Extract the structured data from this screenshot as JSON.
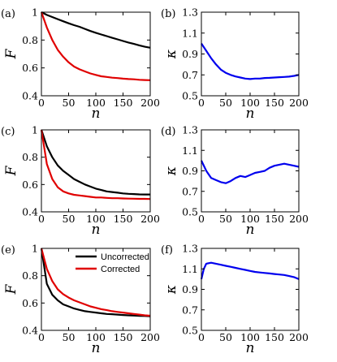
{
  "chart_data": [
    {
      "panel": "(a)",
      "type": "line",
      "xlabel": "n",
      "ylabel": "F",
      "xlim": [
        0,
        200
      ],
      "ylim": [
        0.4,
        1.0
      ],
      "xticks": [
        "0",
        "50",
        "100",
        "150",
        "200"
      ],
      "yticks": [
        "0.4",
        "0.6",
        "0.8",
        "1"
      ],
      "series": [
        {
          "color": "#000000",
          "x": [
            0,
            10,
            20,
            30,
            40,
            50,
            60,
            70,
            80,
            90,
            100,
            110,
            120,
            130,
            140,
            150,
            160,
            170,
            180,
            190,
            200
          ],
          "values": [
            1.0,
            0.98,
            0.965,
            0.95,
            0.935,
            0.92,
            0.907,
            0.895,
            0.88,
            0.865,
            0.852,
            0.84,
            0.828,
            0.816,
            0.805,
            0.793,
            0.782,
            0.772,
            0.762,
            0.752,
            0.745
          ]
        },
        {
          "color": "#e00000",
          "x": [
            0,
            10,
            20,
            30,
            40,
            50,
            60,
            70,
            80,
            90,
            100,
            110,
            120,
            130,
            140,
            150,
            160,
            170,
            180,
            190,
            200
          ],
          "values": [
            1.0,
            0.89,
            0.8,
            0.73,
            0.68,
            0.64,
            0.61,
            0.59,
            0.575,
            0.56,
            0.55,
            0.54,
            0.535,
            0.53,
            0.527,
            0.523,
            0.52,
            0.518,
            0.515,
            0.513,
            0.512
          ]
        }
      ]
    },
    {
      "panel": "(b)",
      "type": "line",
      "xlabel": "n",
      "ylabel": "κ",
      "xlim": [
        0,
        200
      ],
      "ylim": [
        0.5,
        1.3
      ],
      "xticks": [
        "0",
        "50",
        "100",
        "150",
        "200"
      ],
      "yticks": [
        "0.5",
        "0.7",
        "0.9",
        "1.1",
        "1.3"
      ],
      "series": [
        {
          "color": "#0000ee",
          "x": [
            0,
            10,
            20,
            30,
            40,
            50,
            60,
            70,
            80,
            90,
            100,
            110,
            120,
            130,
            140,
            150,
            160,
            170,
            180,
            190,
            200
          ],
          "values": [
            1.0,
            0.93,
            0.86,
            0.8,
            0.75,
            0.72,
            0.7,
            0.685,
            0.675,
            0.665,
            0.66,
            0.665,
            0.665,
            0.67,
            0.672,
            0.675,
            0.678,
            0.68,
            0.683,
            0.69,
            0.7
          ]
        }
      ]
    },
    {
      "panel": "(c)",
      "type": "line",
      "xlabel": "n",
      "ylabel": "F",
      "xlim": [
        0,
        200
      ],
      "ylim": [
        0.4,
        1.0
      ],
      "xticks": [
        "0",
        "50",
        "100",
        "150",
        "200"
      ],
      "yticks": [
        "0.4",
        "0.6",
        "0.8",
        "1"
      ],
      "series": [
        {
          "color": "#000000",
          "x": [
            0,
            10,
            20,
            30,
            40,
            50,
            60,
            70,
            80,
            90,
            100,
            110,
            120,
            130,
            140,
            150,
            160,
            170,
            180,
            190,
            200
          ],
          "values": [
            1.0,
            0.88,
            0.8,
            0.74,
            0.7,
            0.67,
            0.64,
            0.62,
            0.6,
            0.585,
            0.57,
            0.56,
            0.55,
            0.545,
            0.54,
            0.535,
            0.532,
            0.53,
            0.528,
            0.527,
            0.527
          ]
        },
        {
          "color": "#e00000",
          "x": [
            0,
            10,
            20,
            30,
            40,
            50,
            60,
            70,
            80,
            90,
            100,
            110,
            120,
            130,
            140,
            150,
            160,
            170,
            180,
            190,
            200
          ],
          "values": [
            1.0,
            0.75,
            0.64,
            0.58,
            0.55,
            0.535,
            0.525,
            0.52,
            0.515,
            0.51,
            0.505,
            0.505,
            0.502,
            0.5,
            0.5,
            0.498,
            0.497,
            0.496,
            0.495,
            0.495,
            0.494
          ]
        }
      ]
    },
    {
      "panel": "(d)",
      "type": "line",
      "xlabel": "n",
      "ylabel": "κ",
      "xlim": [
        0,
        200
      ],
      "ylim": [
        0.5,
        1.3
      ],
      "xticks": [
        "0",
        "50",
        "100",
        "150",
        "200"
      ],
      "yticks": [
        "0.5",
        "0.7",
        "0.9",
        "1.1",
        "1.3"
      ],
      "series": [
        {
          "color": "#0000ee",
          "x": [
            0,
            10,
            20,
            30,
            40,
            50,
            60,
            70,
            80,
            90,
            100,
            110,
            120,
            130,
            140,
            150,
            160,
            170,
            180,
            190,
            200
          ],
          "values": [
            1.0,
            0.9,
            0.83,
            0.81,
            0.79,
            0.78,
            0.8,
            0.83,
            0.85,
            0.84,
            0.86,
            0.88,
            0.89,
            0.9,
            0.93,
            0.95,
            0.96,
            0.97,
            0.96,
            0.95,
            0.94
          ]
        }
      ]
    },
    {
      "panel": "(e)",
      "type": "line",
      "xlabel": "n",
      "ylabel": "F",
      "xlim": [
        0,
        200
      ],
      "ylim": [
        0.4,
        1.0
      ],
      "xticks": [
        "0",
        "50",
        "100",
        "150",
        "200"
      ],
      "yticks": [
        "0.4",
        "0.6",
        "0.8",
        "1"
      ],
      "legend": {
        "position": "upper-right",
        "entries": [
          "Uncorrected",
          "Corrected"
        ]
      },
      "series": [
        {
          "name": "Uncorrected",
          "color": "#000000",
          "x": [
            0,
            10,
            20,
            30,
            40,
            50,
            60,
            70,
            80,
            90,
            100,
            110,
            120,
            130,
            140,
            150,
            160,
            170,
            180,
            190,
            200
          ],
          "values": [
            1.0,
            0.74,
            0.66,
            0.62,
            0.59,
            0.575,
            0.56,
            0.55,
            0.54,
            0.535,
            0.53,
            0.525,
            0.52,
            0.518,
            0.515,
            0.512,
            0.51,
            0.508,
            0.506,
            0.505,
            0.503
          ]
        },
        {
          "name": "Corrected",
          "color": "#e00000",
          "x": [
            0,
            10,
            20,
            30,
            40,
            50,
            60,
            70,
            80,
            90,
            100,
            110,
            120,
            130,
            140,
            150,
            160,
            170,
            180,
            190,
            200
          ],
          "values": [
            1.0,
            0.85,
            0.76,
            0.7,
            0.665,
            0.64,
            0.62,
            0.605,
            0.59,
            0.575,
            0.565,
            0.555,
            0.548,
            0.54,
            0.535,
            0.53,
            0.525,
            0.52,
            0.515,
            0.51,
            0.507
          ]
        }
      ]
    },
    {
      "panel": "(f)",
      "type": "line",
      "xlabel": "n",
      "ylabel": "κ",
      "xlim": [
        0,
        200
      ],
      "ylim": [
        0.5,
        1.3
      ],
      "xticks": [
        "0",
        "50",
        "100",
        "150",
        "200"
      ],
      "yticks": [
        "0.5",
        "0.7",
        "0.9",
        "1.1",
        "1.3"
      ],
      "series": [
        {
          "color": "#0000ee",
          "x": [
            0,
            5,
            10,
            20,
            30,
            40,
            50,
            60,
            70,
            80,
            90,
            100,
            110,
            120,
            130,
            140,
            150,
            160,
            170,
            180,
            190,
            200
          ],
          "values": [
            1.0,
            1.1,
            1.15,
            1.16,
            1.15,
            1.14,
            1.13,
            1.12,
            1.11,
            1.1,
            1.09,
            1.08,
            1.07,
            1.065,
            1.06,
            1.055,
            1.05,
            1.045,
            1.04,
            1.03,
            1.02,
            1.0
          ]
        }
      ]
    }
  ]
}
